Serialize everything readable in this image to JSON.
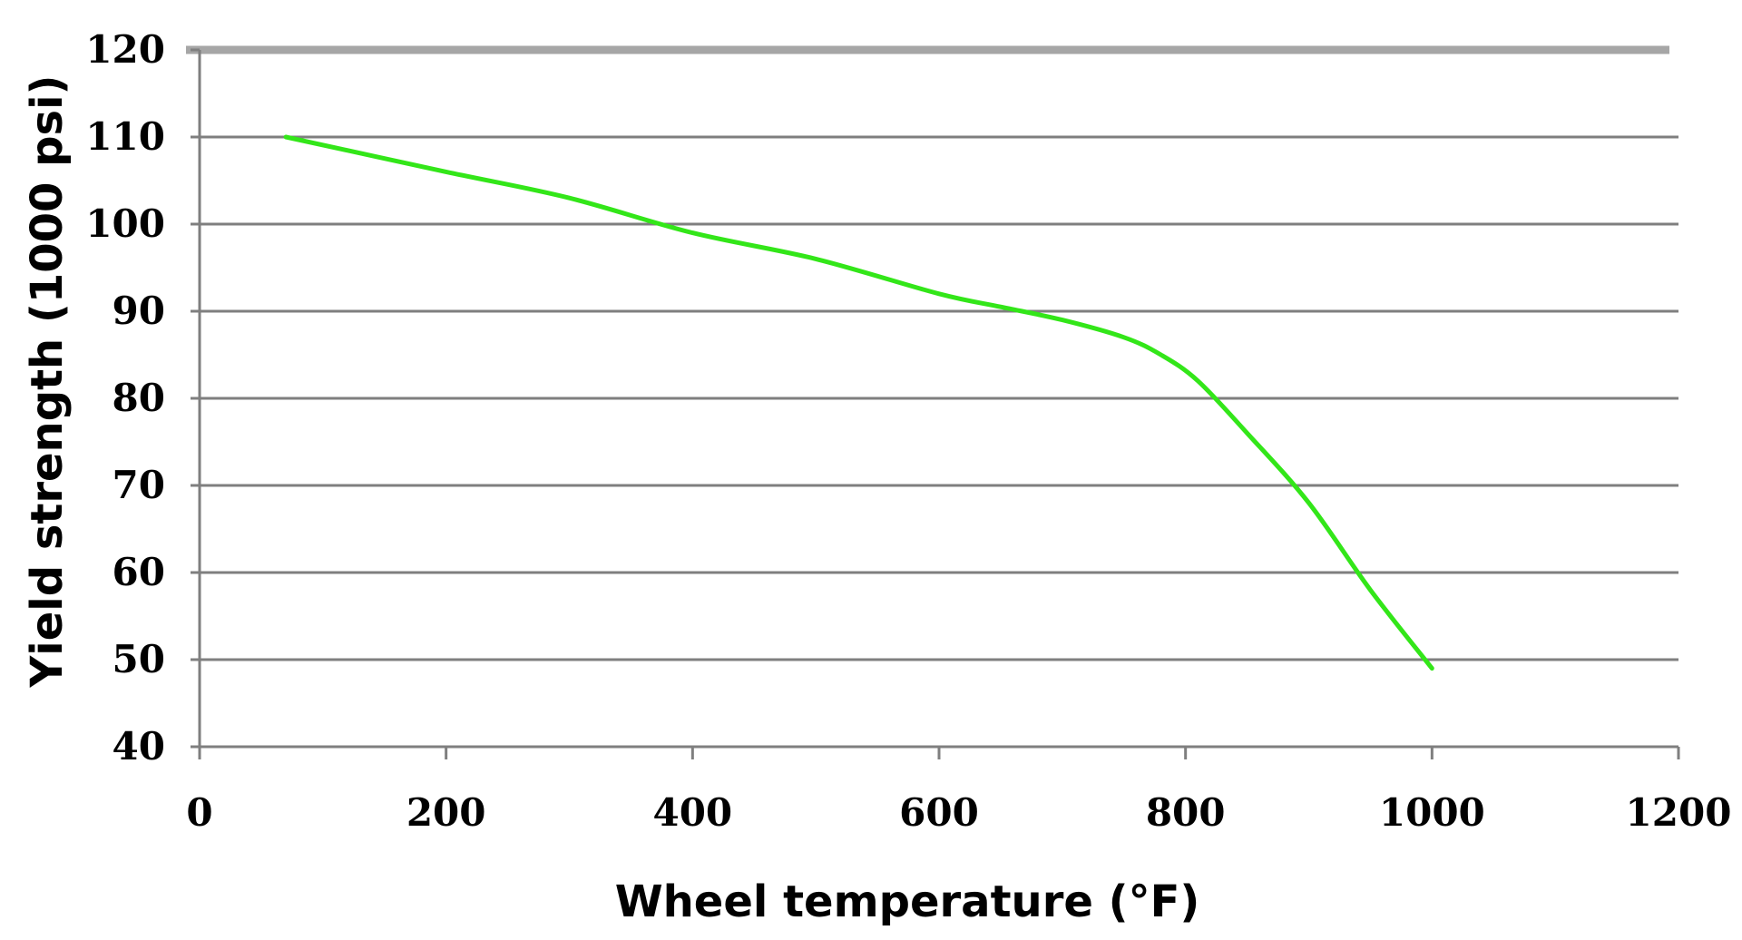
{
  "chart_data": {
    "type": "line",
    "title": "",
    "xlabel": "Wheel temperature (°F)",
    "ylabel": "Yield strength (1000 psi)",
    "xlim": [
      0,
      1200
    ],
    "ylim": [
      40,
      120
    ],
    "x_ticks": [
      0,
      200,
      400,
      600,
      800,
      1000,
      1200
    ],
    "y_ticks": [
      40,
      50,
      60,
      70,
      80,
      90,
      100,
      110,
      120
    ],
    "grid": "horizontal",
    "legend": "none",
    "colors": {
      "line": "#33e619",
      "gridline": "#7f7f7f",
      "top_border": "#a6a6a6",
      "axis": "#7f7f7f",
      "text": "#000000"
    },
    "series": [
      {
        "x": [
          70,
          200,
          300,
          400,
          500,
          600,
          650,
          700,
          750,
          780,
          810,
          850,
          900,
          950,
          1000
        ],
        "y": [
          110,
          106,
          103,
          99,
          96,
          92,
          90.5,
          89,
          87,
          85,
          82,
          76,
          68,
          58,
          49
        ]
      }
    ]
  }
}
